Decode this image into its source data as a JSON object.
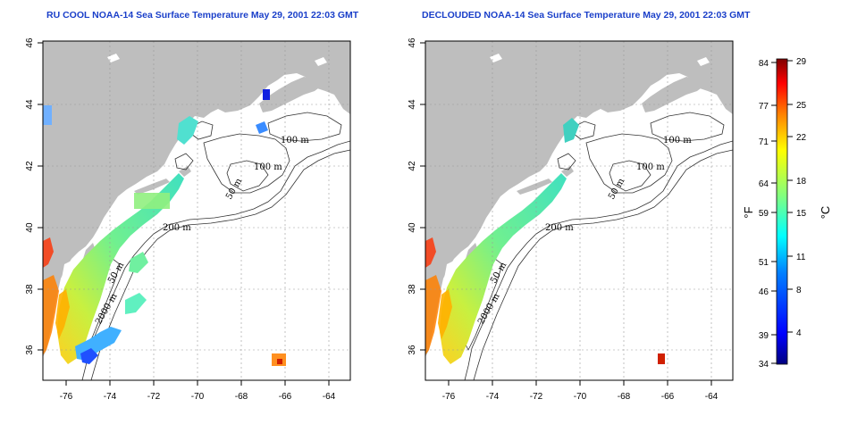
{
  "left_panel": {
    "title": "RU COOL NOAA-14 Sea Surface Temperature May 29, 2001 22:03 GMT"
  },
  "right_panel": {
    "title": "DECLOUDED NOAA-14 Sea Surface Temperature May 29, 2001 22:03 GMT"
  },
  "axes": {
    "lon_ticks": [
      "-76",
      "-74",
      "-72",
      "-70",
      "-68",
      "-66",
      "-64"
    ],
    "lat_ticks": [
      "36",
      "38",
      "40",
      "42",
      "44",
      "46"
    ],
    "lon_range": [
      -77.2,
      -63.0
    ],
    "lat_range": [
      35.0,
      46.0
    ]
  },
  "contour_labels": [
    "100 m",
    "100 m",
    "50 m",
    "200 m",
    "50 m",
    "2000 m"
  ],
  "colorbar": {
    "fahrenheit_ticks": [
      "84",
      "77",
      "71",
      "64",
      "59",
      "51",
      "46",
      "39",
      "34"
    ],
    "celsius_ticks": [
      "29",
      "25",
      "22",
      "18",
      "15",
      "11",
      "8",
      "4"
    ],
    "fahrenheit_unit": "°F",
    "celsius_unit": "°C",
    "colors": [
      "#00007f",
      "#0000ff",
      "#0080ff",
      "#00ffff",
      "#80ff80",
      "#ffff00",
      "#ff8000",
      "#ff0000",
      "#7f0000"
    ]
  }
}
